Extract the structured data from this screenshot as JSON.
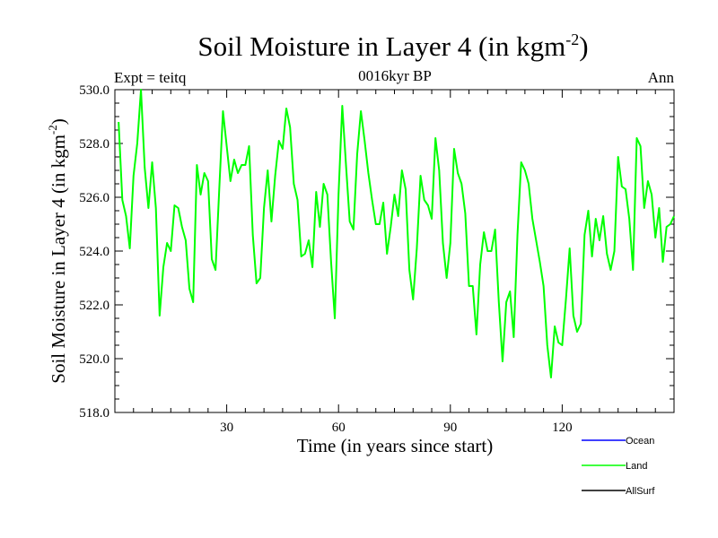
{
  "chart_data": {
    "type": "line",
    "title": "Soil Moisture in Layer 4 (in kgm",
    "title_sup": "-2",
    "title_end": ")",
    "subtitle": "0016kyr BP",
    "left_note": "Expt = teitq",
    "right_note": "Ann",
    "xlabel": "Time (in years since start)",
    "ylabel": "Soil Moisture in Layer 4 (in kgm",
    "ylabel_sup": "-2",
    "ylabel_end": ")",
    "xlim": [
      0,
      150
    ],
    "ylim": [
      518,
      530
    ],
    "x_ticks": [
      30,
      60,
      90,
      120
    ],
    "x_tick_labels": [
      "30",
      "60",
      "90",
      "120"
    ],
    "y_ticks": [
      518,
      520,
      522,
      524,
      526,
      528,
      530
    ],
    "y_tick_labels": [
      "518.0",
      "520.0",
      "522.0",
      "524.0",
      "526.0",
      "528.0",
      "530.0"
    ],
    "series": [
      {
        "name": "Ocean",
        "color": "#0000ff",
        "values": []
      },
      {
        "name": "Land",
        "color": "#00ff00",
        "values": [
          528.8,
          525.9,
          525.3,
          524.1,
          526.8,
          528.0,
          530.0,
          527.1,
          525.6,
          527.3,
          525.6,
          521.6,
          523.4,
          524.3,
          524.0,
          525.7,
          525.6,
          524.9,
          524.4,
          522.6,
          522.1,
          527.2,
          526.1,
          526.9,
          526.6,
          523.7,
          523.3,
          526.3,
          529.2,
          527.9,
          526.6,
          527.4,
          526.9,
          527.2,
          527.2,
          527.9,
          524.6,
          522.8,
          523.0,
          525.6,
          527.0,
          525.1,
          526.8,
          528.1,
          527.8,
          529.3,
          528.6,
          526.5,
          525.9,
          523.8,
          523.9,
          524.4,
          523.4,
          526.2,
          524.9,
          526.5,
          526.1,
          523.6,
          521.5,
          526.1,
          529.4,
          527.2,
          525.1,
          524.8,
          527.6,
          529.2,
          528.1,
          526.9,
          525.9,
          525.0,
          525.0,
          525.8,
          523.9,
          524.9,
          526.1,
          525.3,
          527.0,
          526.3,
          523.3,
          522.2,
          524.1,
          526.8,
          525.9,
          525.7,
          525.2,
          528.2,
          527.0,
          524.3,
          523.0,
          524.3,
          527.8,
          526.9,
          526.5,
          525.4,
          522.7,
          522.7,
          520.9,
          523.5,
          524.7,
          524.0,
          524.0,
          524.8,
          522.1,
          519.9,
          522.1,
          522.5,
          520.8,
          524.6,
          527.3,
          527.0,
          526.5,
          525.2,
          524.4,
          523.6,
          522.7,
          520.5,
          519.3,
          521.2,
          520.6,
          520.5,
          522.2,
          524.1,
          521.6,
          521.0,
          521.3,
          524.6,
          525.5,
          523.8,
          525.2,
          524.4,
          525.3,
          523.9,
          523.3,
          524.0,
          527.5,
          526.4,
          526.3,
          525.2,
          523.3,
          528.2,
          527.9,
          525.6,
          526.6,
          526.1,
          524.5,
          525.6,
          523.6,
          524.9,
          525.0,
          525.3
        ]
      },
      {
        "name": "AllSurf",
        "color": "#000000",
        "values": []
      }
    ],
    "legend_position": "bottom-right"
  }
}
